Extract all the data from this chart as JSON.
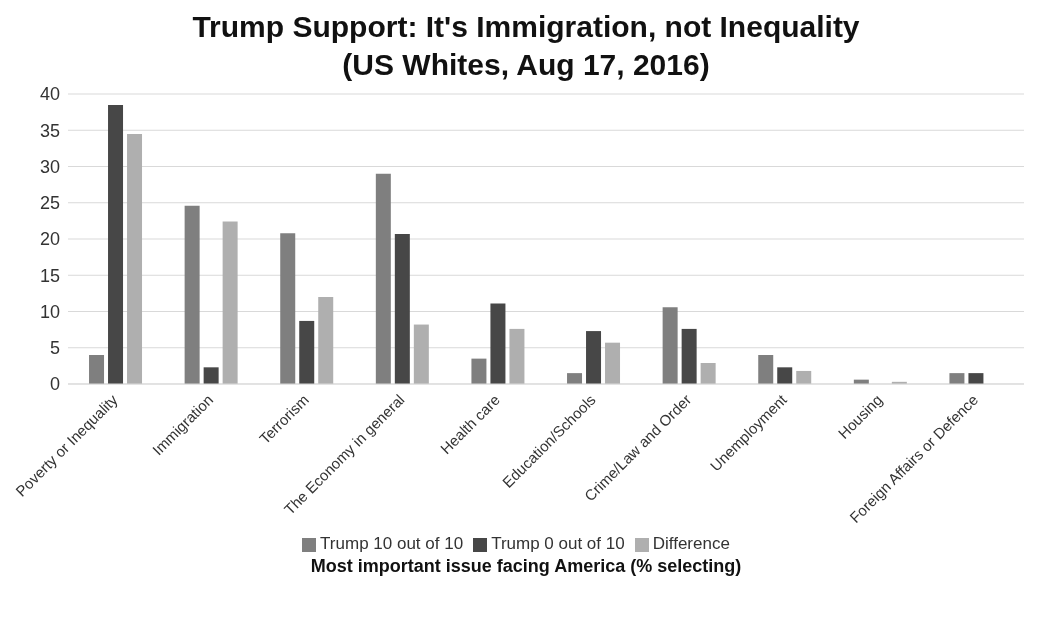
{
  "chart_data": {
    "type": "bar",
    "title": "Trump Support: It's Immigration, not Inequality",
    "subtitle": "(US Whites, Aug 17, 2016)",
    "xlabel": "Most important issue facing America (% selecting)",
    "categories": [
      "Poverty or Inequality",
      "Immigration",
      "Terrorism",
      "The Economy in general",
      "Health care",
      "Education/Schools",
      "Crime/Law and Order",
      "Unemployment",
      "Housing",
      "Foreign Affairs or Defence"
    ],
    "series": [
      {
        "name": "Trump 10 out of 10",
        "color": "#7f7f7f",
        "values": [
          4.0,
          24.6,
          20.8,
          29.0,
          3.5,
          1.5,
          10.6,
          4.0,
          0.6,
          1.5
        ]
      },
      {
        "name": "Trump 0 out of 10",
        "color": "#474747",
        "values": [
          38.5,
          2.3,
          8.7,
          20.7,
          11.1,
          7.3,
          7.6,
          2.3,
          0,
          1.5
        ]
      },
      {
        "name": "Difference",
        "color": "#afafaf",
        "values": [
          34.5,
          22.4,
          12.0,
          8.2,
          7.6,
          5.7,
          2.9,
          1.8,
          0.3,
          0
        ]
      }
    ],
    "ylim": [
      0,
      40
    ],
    "yticks": [
      0,
      5,
      10,
      15,
      20,
      25,
      30,
      35,
      40
    ],
    "grid": "y",
    "legend": "bottom"
  }
}
